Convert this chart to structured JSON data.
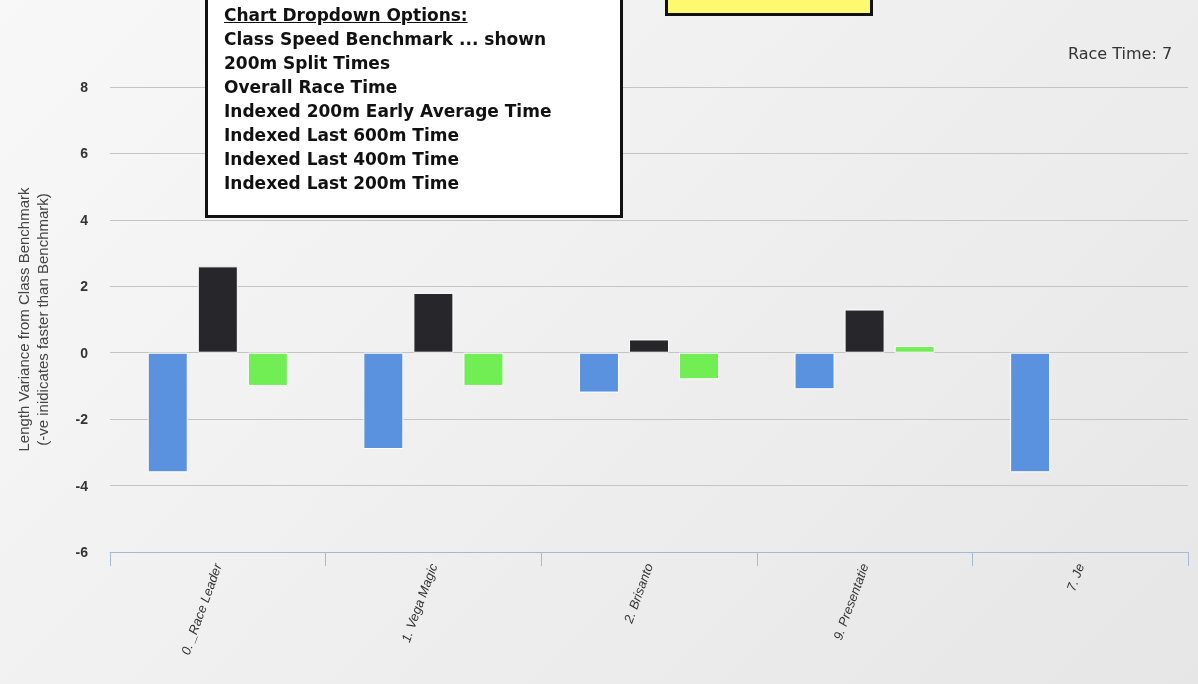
{
  "chart_data": {
    "type": "bar",
    "ylabel": "Length Variance from Class Benchmark\n(-ve inidicates faster than Benchmark)",
    "categories": [
      "0. _Race Leader",
      "1. Vega Magic",
      "2. Brisanto",
      "9. Presentatie",
      "7. Je"
    ],
    "series": [
      {
        "color": "#5b92e0",
        "values": [
          -3.6,
          -2.9,
          -1.2,
          -1.1,
          -3.6
        ]
      },
      {
        "color": "#27272b",
        "values": [
          2.6,
          1.8,
          0.4,
          1.3,
          null
        ]
      },
      {
        "color": "#72ee55",
        "values": [
          -1.0,
          -1.0,
          -0.8,
          0.2,
          null
        ]
      }
    ],
    "ylim": [
      -6,
      8
    ],
    "yticks": [
      -6,
      -4,
      -2,
      0,
      2,
      4,
      6,
      8
    ],
    "grid": "y",
    "annotations": [
      "Chart Dropdown Options:",
      "Class Speed Benchmark ... shown",
      "200m Split Times",
      "Overall Race Time",
      "Indexed 200m Early Average Time",
      "Indexed Last 600m Time",
      "Indexed Last 400m Time",
      "Indexed Last 200m Time",
      "Race Time: 7"
    ]
  }
}
